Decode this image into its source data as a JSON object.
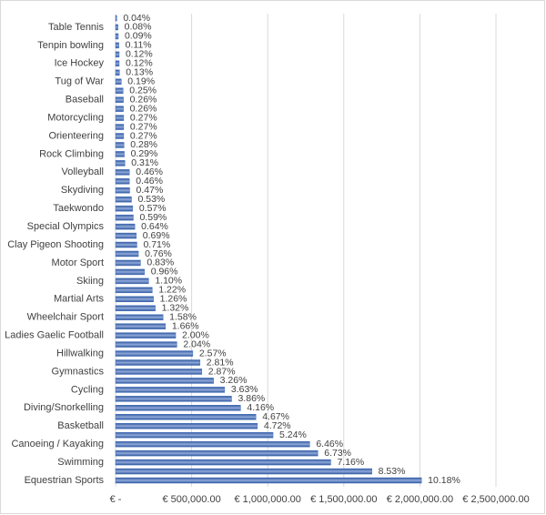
{
  "chart_data": {
    "type": "hbar",
    "categories": [
      null,
      "Table Tennis",
      null,
      "Tenpin bowling",
      null,
      "Ice Hockey",
      null,
      "Tug of War",
      null,
      "Baseball",
      null,
      "Motorcycling",
      null,
      "Orienteering",
      null,
      "Rock Climbing",
      null,
      "Volleyball",
      null,
      "Skydiving",
      null,
      "Taekwondo",
      null,
      "Special Olympics",
      null,
      "Clay Pigeon Shooting",
      null,
      "Motor Sport",
      null,
      "Skiing",
      null,
      "Martial Arts",
      null,
      "Wheelchair Sport",
      null,
      "Ladies Gaelic Football",
      null,
      "Hillwalking",
      null,
      "Gymnastics",
      null,
      "Cycling",
      null,
      "Diving/Snorkelling",
      null,
      "Basketball",
      null,
      "Canoeing / Kayaking",
      null,
      "Swimming",
      null,
      "Equestrian Sports"
    ],
    "values": [
      7900,
      15800,
      17800,
      21700,
      23700,
      23700,
      25700,
      37500,
      49400,
      51400,
      51400,
      53300,
      53300,
      53300,
      55300,
      57300,
      61200,
      90900,
      90900,
      92800,
      104700,
      112600,
      116500,
      126400,
      136300,
      140200,
      150100,
      163900,
      189600,
      217300,
      241000,
      248900,
      260700,
      312100,
      327900,
      395000,
      402900,
      507600,
      555000,
      566800,
      643900,
      716900,
      762400,
      821600,
      922300,
      932200,
      1034900,
      1275900,
      1329200,
      1414100,
      1684700,
      2010600
    ],
    "value_labels": [
      "0.04%",
      "0.08%",
      "0.09%",
      "0.11%",
      "0.12%",
      "0.12%",
      "0.13%",
      "0.19%",
      "0.25%",
      "0.26%",
      "0.26%",
      "0.27%",
      "0.27%",
      "0.27%",
      "0.28%",
      "0.29%",
      "0.31%",
      "0.46%",
      "0.46%",
      "0.47%",
      "0.53%",
      "0.57%",
      "0.59%",
      "0.64%",
      "0.69%",
      "0.71%",
      "0.76%",
      "0.83%",
      "0.96%",
      "1.10%",
      "1.22%",
      "1.26%",
      "1.32%",
      "1.58%",
      "1.66%",
      "2.00%",
      "2.04%",
      "2.57%",
      "2.81%",
      "2.87%",
      "3.26%",
      "3.63%",
      "3.86%",
      "4.16%",
      "4.67%",
      "4.72%",
      "5.24%",
      "6.46%",
      "6.73%",
      "7.16%",
      "8.53%",
      "10.18%"
    ],
    "color": "#4472c4",
    "xlim": [
      0,
      2500000
    ],
    "xticks": [
      {
        "value": 0,
        "label": "€ -"
      },
      {
        "value": 500000,
        "label": "€ 500,000.00"
      },
      {
        "value": 1000000,
        "label": "€ 1,000,000.00"
      },
      {
        "value": 1500000,
        "label": "€ 1,500,000.00"
      },
      {
        "value": 2000000,
        "label": "€ 2,000,000.00"
      },
      {
        "value": 2500000,
        "label": "€ 2,500,000.00"
      }
    ],
    "grid": true
  }
}
